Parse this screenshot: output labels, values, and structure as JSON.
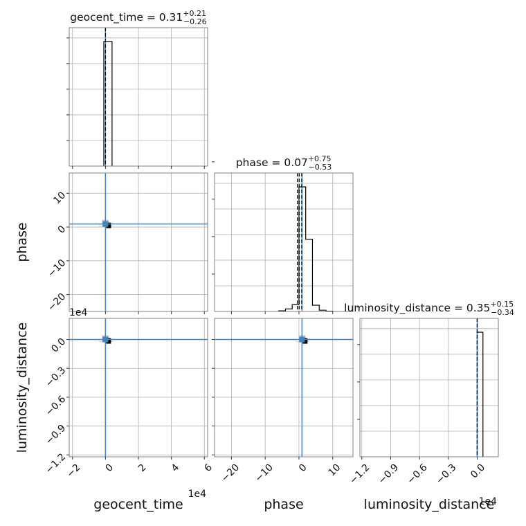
{
  "chart_data": {
    "type": "corner",
    "parameters": [
      "geocent_time",
      "phase",
      "luminosity_distance"
    ],
    "axis_labels": {
      "geocent_time": "geocent_time",
      "phase": "phase",
      "luminosity_distance": "luminosity_distance"
    },
    "offset_texts": {
      "geocent_time": "1e4",
      "luminosity_distance": "1e4"
    },
    "ranges": {
      "geocent_time": [
        -2.2,
        6.2
      ],
      "phase": [
        -25,
        16
      ],
      "luminosity_distance": [
        -1.22,
        0.22
      ]
    },
    "ticks": {
      "geocent_time": [
        -2,
        0,
        2,
        4,
        6
      ],
      "phase": [
        -20,
        -10,
        0,
        10
      ],
      "luminosity_distance": [
        -1.2,
        -0.9,
        -0.6,
        -0.3,
        0.0
      ]
    },
    "tick_labels": {
      "geocent_time": [
        "−2",
        "0",
        "2",
        "4",
        "6"
      ],
      "phase": [
        "−20",
        "−10",
        "0",
        "10"
      ],
      "luminosity_distance": [
        "−1.2",
        "−0.9",
        "−0.6",
        "−0.3",
        "0.0"
      ]
    },
    "truths": {
      "geocent_time": 0.0,
      "phase": 0.9,
      "luminosity_distance": 0.0
    },
    "titles": {
      "geocent_time": {
        "name": "geocent_time",
        "median": "0.31",
        "plus": "+0.21",
        "minus": "−0.26"
      },
      "phase": {
        "name": "phase",
        "median": "0.07",
        "plus": "+0.75",
        "minus": "−0.53"
      },
      "luminosity_distance": {
        "name": "luminosity_distance",
        "median": "0.35",
        "plus": "+0.15",
        "minus": "−0.34"
      }
    },
    "histograms": {
      "geocent_time": {
        "edges": [
          -0.1,
          0.4
        ],
        "heights": [
          1.0
        ]
      },
      "phase": {
        "edges": [
          -6,
          -4,
          -2,
          0,
          2,
          4,
          6,
          8,
          10
        ],
        "heights": [
          0.005,
          0.02,
          0.055,
          1.0,
          0.58,
          0.05,
          0.01,
          0.002
        ]
      },
      "luminosity_distance": {
        "edges": [
          0.0,
          0.06
        ],
        "heights": [
          1.0
        ]
      }
    },
    "quantile_lines": {
      "geocent_time": [
        0.0
      ],
      "phase": [
        -0.46,
        0.07,
        0.82
      ],
      "luminosity_distance": [
        0.0
      ]
    },
    "grid": true,
    "truth_color": "#4682b4"
  }
}
